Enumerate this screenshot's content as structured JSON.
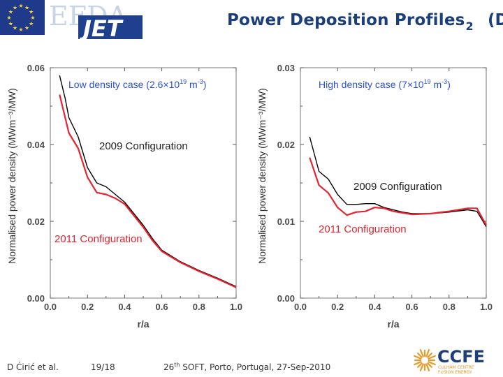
{
  "header": {
    "title": "Power Deposition Profiles",
    "title_sub": "2",
    "title_trailing": "(D",
    "efda_text": "EFDA",
    "jet_text": "JET",
    "ccfe_text": "CCFE",
    "ccfe_tagline_1": "CULHAM CENTRE",
    "ccfe_tagline_2": "FUSION ENERGY"
  },
  "footer": {
    "author": "D Ćirić et al.",
    "page": "19/18",
    "conf_num": "26",
    "conf_sup": "th",
    "conf_rest": " SOFT, Porto, Portugal, 27-Sep-2010"
  },
  "colors": {
    "title": "#1c3f7c",
    "legend_blue": "#2a4fd6",
    "series_2009": "#000000",
    "series_2011": "#e8222e"
  },
  "chart_data": [
    {
      "type": "line",
      "xlabel": "r/a",
      "ylabel": "Normalised power density (MWm⁻³/MW)",
      "xlim": [
        0.0,
        1.0
      ],
      "ylim": [
        0.0,
        0.06
      ],
      "xticks": [
        "0.0",
        "0.2",
        "0.4",
        "0.6",
        "0.8",
        "1.0"
      ],
      "yticks": [
        "0.00",
        "0.02",
        "0.04",
        "0.06"
      ],
      "case_label": {
        "pre": "Low density case (2.6×10",
        "sup": "19",
        "post": " m",
        "unit_sup": "-3",
        "close": ")"
      },
      "series": [
        {
          "name": "2009 Configuration",
          "color": "#000000",
          "x": [
            0.05,
            0.08,
            0.1,
            0.15,
            0.2,
            0.25,
            0.3,
            0.35,
            0.4,
            0.45,
            0.5,
            0.55,
            0.6,
            0.7,
            0.8,
            0.9,
            1.0
          ],
          "y": [
            0.058,
            0.052,
            0.047,
            0.042,
            0.034,
            0.03,
            0.029,
            0.027,
            0.025,
            0.022,
            0.019,
            0.0155,
            0.0125,
            0.0095,
            0.0072,
            0.0052,
            0.003
          ]
        },
        {
          "name": "2011 Configuration",
          "color": "#e8222e",
          "x": [
            0.05,
            0.08,
            0.1,
            0.15,
            0.2,
            0.25,
            0.3,
            0.35,
            0.4,
            0.45,
            0.5,
            0.55,
            0.6,
            0.7,
            0.8,
            0.9,
            1.0
          ],
          "y": [
            0.053,
            0.047,
            0.043,
            0.039,
            0.0315,
            0.0275,
            0.027,
            0.026,
            0.0245,
            0.0215,
            0.0185,
            0.015,
            0.0122,
            0.0093,
            0.007,
            0.005,
            0.0028
          ]
        }
      ]
    },
    {
      "type": "line",
      "xlabel": "r/a",
      "ylabel": "Normalised power density (MWm⁻³/MW)",
      "xlim": [
        0.0,
        1.0
      ],
      "ylim": [
        0.0,
        0.03
      ],
      "xticks": [
        "0.0",
        "0.2",
        "0.4",
        "0.6",
        "0.8",
        "1.0"
      ],
      "yticks": [
        "0.00",
        "0.01",
        "0.02",
        "0.03"
      ],
      "case_label": {
        "pre": "High density case (7×10",
        "sup": "19",
        "post": " m",
        "unit_sup": "-3",
        "close": ")"
      },
      "series": [
        {
          "name": "2009 Configuration",
          "color": "#000000",
          "x": [
            0.05,
            0.1,
            0.15,
            0.2,
            0.25,
            0.3,
            0.35,
            0.4,
            0.45,
            0.5,
            0.55,
            0.6,
            0.7,
            0.8,
            0.9,
            0.95,
            1.0
          ],
          "y": [
            0.021,
            0.0165,
            0.0155,
            0.0135,
            0.0122,
            0.0122,
            0.0123,
            0.0123,
            0.0118,
            0.0115,
            0.0112,
            0.011,
            0.011,
            0.0112,
            0.0115,
            0.0113,
            0.0093
          ]
        },
        {
          "name": "2011 Configuration",
          "color": "#e8222e",
          "x": [
            0.05,
            0.1,
            0.15,
            0.2,
            0.25,
            0.3,
            0.35,
            0.4,
            0.45,
            0.5,
            0.55,
            0.6,
            0.7,
            0.8,
            0.9,
            0.95,
            1.0
          ],
          "y": [
            0.0183,
            0.0147,
            0.0137,
            0.0118,
            0.0108,
            0.0112,
            0.0113,
            0.0118,
            0.0117,
            0.0113,
            0.0111,
            0.0109,
            0.011,
            0.0113,
            0.0117,
            0.0117,
            0.0095
          ]
        }
      ]
    }
  ]
}
